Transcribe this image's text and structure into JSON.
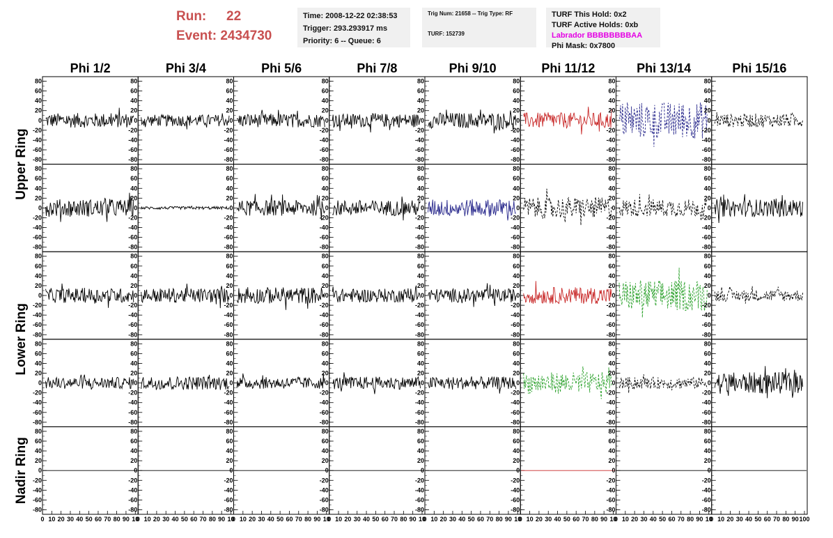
{
  "header": {
    "run_label": "Run:",
    "run_value": "22",
    "event_label": "Event:",
    "event_value": "2434730"
  },
  "info_time": {
    "time": "Time: 2008-12-22 02:38:53",
    "trigger": "Trigger: 293.293917 ms",
    "priority": "Priority: 6 -- Queue: 6"
  },
  "info_trig": {
    "trig": "Trig Num: 21658 -- Trig Type: RF",
    "turf": "TURF: 152739"
  },
  "info_turf": {
    "hold": "TURF This Hold: 0x2",
    "active": "TURF Active Holds: 0xb",
    "labrador": "Labrador BBBBBBBBAA",
    "mask": "Phi Mask: 0x7800"
  },
  "colors": {
    "run_text": "#c85050",
    "labrador_text": "#e400e4",
    "info_bg": "#f0f0f0",
    "trace_black": "#000000",
    "trace_red": "#c82828",
    "trace_blue": "#28288c",
    "trace_green": "#28a028"
  },
  "chart_data": {
    "type": "line",
    "columns": [
      "Phi 1/2",
      "Phi 3/4",
      "Phi 5/6",
      "Phi 7/8",
      "Phi 9/10",
      "Phi 11/12",
      "Phi 13/14",
      "Phi 15/16"
    ],
    "row_labels": [
      "Upper Ring",
      "Lower Ring",
      "Nadir Ring"
    ],
    "ylim": [
      -85,
      85
    ],
    "xlim": [
      0,
      100
    ],
    "y_ticks": [
      80,
      60,
      40,
      20,
      0,
      -20,
      -40,
      -60,
      -80
    ],
    "x_ticks": [
      0,
      10,
      20,
      30,
      40,
      50,
      60,
      70,
      80,
      90,
      100
    ],
    "x_tick_labels_first": "0 10 20 30 40 50 60 70 80 90 10",
    "x_tick_labels_middle": "0 10 20 30 40 50 60 70 80 90 10",
    "x_tick_labels_last": "0 10 20 30 40 50 60 70 80 90 100",
    "panels": [
      [
        {
          "color": "#000000",
          "style": "solid",
          "amp": 15
        },
        {
          "color": "#000000",
          "style": "solid",
          "amp": 12
        },
        {
          "color": "#000000",
          "style": "solid",
          "amp": 14
        },
        {
          "color": "#000000",
          "style": "solid",
          "amp": 14
        },
        {
          "color": "#000000",
          "style": "solid",
          "amp": 16
        },
        {
          "color": "#c82828",
          "style": "solid",
          "amp": 16
        },
        {
          "color": "#28288c",
          "style": "dashed",
          "amp": 38
        },
        {
          "color": "#000000",
          "style": "dashed",
          "amp": 14
        }
      ],
      [
        {
          "color": "#000000",
          "style": "solid",
          "amp": 18
        },
        {
          "color": "#000000",
          "style": "solid",
          "amp": 3
        },
        {
          "color": "#000000",
          "style": "solid",
          "amp": 16
        },
        {
          "color": "#000000",
          "style": "solid",
          "amp": 16
        },
        {
          "color": "#28288c",
          "style": "solid",
          "amp": 18
        },
        {
          "color": "#000000",
          "style": "dashed",
          "amp": 22
        },
        {
          "color": "#000000",
          "style": "dashed",
          "amp": 18
        },
        {
          "color": "#000000",
          "style": "solid",
          "amp": 18
        }
      ],
      [
        {
          "color": "#000000",
          "style": "solid",
          "amp": 15
        },
        {
          "color": "#000000",
          "style": "solid",
          "amp": 15
        },
        {
          "color": "#000000",
          "style": "solid",
          "amp": 17
        },
        {
          "color": "#000000",
          "style": "solid",
          "amp": 14
        },
        {
          "color": "#000000",
          "style": "solid",
          "amp": 14
        },
        {
          "color": "#c82828",
          "style": "solid",
          "amp": 17
        },
        {
          "color": "#28a028",
          "style": "dashed",
          "amp": 32
        },
        {
          "color": "#000000",
          "style": "dashed",
          "amp": 12
        }
      ],
      [
        {
          "color": "#000000",
          "style": "solid",
          "amp": 12
        },
        {
          "color": "#000000",
          "style": "solid",
          "amp": 14
        },
        {
          "color": "#000000",
          "style": "solid",
          "amp": 12
        },
        {
          "color": "#000000",
          "style": "solid",
          "amp": 13
        },
        {
          "color": "#000000",
          "style": "solid",
          "amp": 13
        },
        {
          "color": "#28a028",
          "style": "dashed",
          "amp": 22
        },
        {
          "color": "#000000",
          "style": "dashed",
          "amp": 12
        },
        {
          "color": "#000000",
          "style": "solid",
          "amp": 22
        }
      ],
      [
        {
          "color": "#000000",
          "style": "solid",
          "amp": 0
        },
        {
          "color": "#000000",
          "style": "solid",
          "amp": 0
        },
        {
          "color": "#000000",
          "style": "solid",
          "amp": 0
        },
        {
          "color": "#000000",
          "style": "solid",
          "amp": 0
        },
        {
          "color": "#000000",
          "style": "solid",
          "amp": 0
        },
        {
          "color": "#c82828",
          "style": "solid",
          "amp": 0
        },
        {
          "color": "#000000",
          "style": "solid",
          "amp": 0
        },
        {
          "color": "#000000",
          "style": "solid",
          "amp": 0
        }
      ]
    ]
  }
}
